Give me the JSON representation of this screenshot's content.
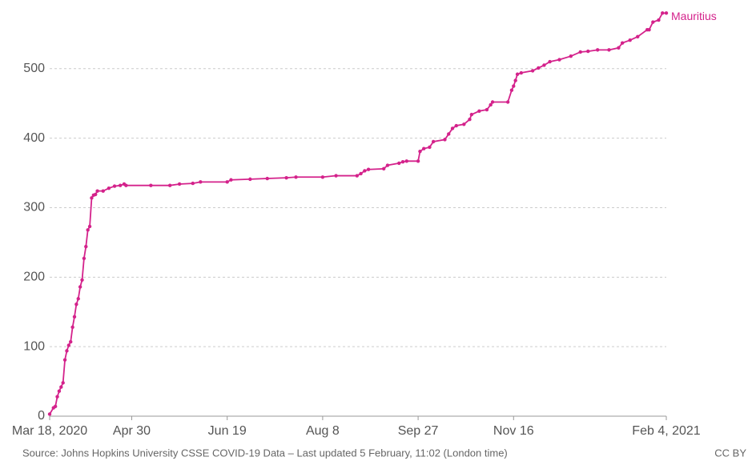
{
  "chart_data": {
    "type": "line",
    "series": [
      {
        "name": "Mauritius",
        "color": "#d4228b",
        "x": [
          "2020-03-18",
          "2020-03-20",
          "2020-03-21",
          "2020-03-22",
          "2020-03-23",
          "2020-03-24",
          "2020-03-25",
          "2020-03-26",
          "2020-03-27",
          "2020-03-28",
          "2020-03-29",
          "2020-03-30",
          "2020-03-31",
          "2020-04-01",
          "2020-04-02",
          "2020-04-03",
          "2020-04-04",
          "2020-04-05",
          "2020-04-06",
          "2020-04-07",
          "2020-04-08",
          "2020-04-09",
          "2020-04-10",
          "2020-04-11",
          "2020-04-12",
          "2020-04-15",
          "2020-04-18",
          "2020-04-21",
          "2020-04-24",
          "2020-04-26",
          "2020-04-27",
          "2020-05-10",
          "2020-05-20",
          "2020-05-25",
          "2020-06-01",
          "2020-06-05",
          "2020-06-19",
          "2020-06-21",
          "2020-07-01",
          "2020-07-10",
          "2020-07-20",
          "2020-07-25",
          "2020-08-08",
          "2020-08-15",
          "2020-08-26",
          "2020-08-28",
          "2020-08-30",
          "2020-09-01",
          "2020-09-09",
          "2020-09-11",
          "2020-09-17",
          "2020-09-19",
          "2020-09-21",
          "2020-09-27",
          "2020-09-28",
          "2020-09-30",
          "2020-10-03",
          "2020-10-05",
          "2020-10-11",
          "2020-10-13",
          "2020-10-15",
          "2020-10-17",
          "2020-10-21",
          "2020-10-24",
          "2020-10-25",
          "2020-10-29",
          "2020-11-02",
          "2020-11-04",
          "2020-11-05",
          "2020-11-13",
          "2020-11-15",
          "2020-11-16",
          "2020-11-17",
          "2020-11-18",
          "2020-11-20",
          "2020-11-26",
          "2020-11-29",
          "2020-12-02",
          "2020-12-05",
          "2020-12-10",
          "2020-12-16",
          "2020-12-21",
          "2020-12-25",
          "2020-12-30",
          "2021-01-05",
          "2021-01-10",
          "2021-01-12",
          "2021-01-16",
          "2021-01-20",
          "2021-01-25",
          "2021-01-26",
          "2021-01-28",
          "2021-01-31",
          "2021-02-02",
          "2021-02-04"
        ],
        "values": [
          3,
          12,
          14,
          28,
          36,
          42,
          48,
          81,
          94,
          102,
          107,
          128,
          143,
          161,
          169,
          186,
          196,
          227,
          244,
          268,
          273,
          314,
          318,
          319,
          324,
          324,
          328,
          331,
          332,
          334,
          332,
          332,
          332,
          334,
          335,
          337,
          337,
          340,
          341,
          342,
          343,
          344,
          344,
          346,
          346,
          349,
          353,
          355,
          356,
          361,
          364,
          366,
          367,
          367,
          381,
          385,
          387,
          395,
          398,
          406,
          414,
          418,
          420,
          427,
          434,
          439,
          441,
          448,
          452,
          452,
          469,
          475,
          483,
          492,
          494,
          497,
          501,
          505,
          510,
          513,
          518,
          524,
          525,
          527,
          527,
          530,
          537,
          541,
          546,
          556,
          556,
          567,
          570,
          580,
          580
        ]
      }
    ],
    "xlim": [
      "2020-03-18",
      "2021-02-04"
    ],
    "xticks": [
      {
        "value": "2020-03-18",
        "label": "Mar 18, 2020"
      },
      {
        "value": "2020-04-30",
        "label": "Apr 30"
      },
      {
        "value": "2020-06-19",
        "label": "Jun 19"
      },
      {
        "value": "2020-08-08",
        "label": "Aug 8"
      },
      {
        "value": "2020-09-27",
        "label": "Sep 27"
      },
      {
        "value": "2020-11-16",
        "label": "Nov 16"
      },
      {
        "value": "2021-02-04",
        "label": "Feb 4, 2021"
      }
    ],
    "ylim": [
      0,
      585
    ],
    "yticks": [
      0,
      100,
      200,
      300,
      400,
      500
    ],
    "grid": true,
    "source": "Source: Johns Hopkins University CSSE COVID-19 Data – Last updated 5 February, 11:02 (London time)",
    "license": "CC BY"
  }
}
